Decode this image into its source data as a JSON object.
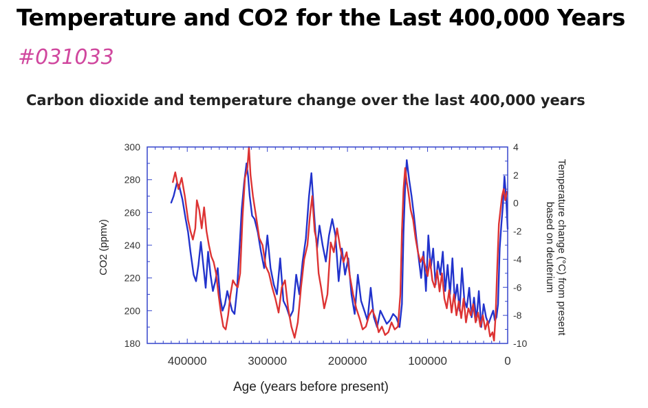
{
  "page": {
    "title": "Temperature and CO2 for the Last 400,000 Years",
    "code": "#031033"
  },
  "chart_data": {
    "type": "line",
    "title": "Carbon dioxide and temperature change over the last 400,000 years",
    "xlabel": "Age (years before present)",
    "ylabel": "CO2 (ppmv)",
    "y2label": [
      "Temperature change (°C) from present",
      "based on deuterium"
    ],
    "xlim": [
      450000,
      0
    ],
    "ylim": [
      180,
      300
    ],
    "y2lim": [
      -10,
      4
    ],
    "xticks": [
      400000,
      300000,
      200000,
      100000,
      0
    ],
    "yticks": [
      180,
      200,
      220,
      240,
      260,
      280,
      300
    ],
    "y2ticks": [
      -10,
      -8,
      -6,
      -4,
      -2,
      0,
      2,
      4
    ],
    "grid": false,
    "colors": {
      "co2": "#2233cc",
      "temperature": "#dd3333",
      "axes": "#3344cc"
    },
    "series": [
      {
        "key": "co2",
        "axis": "left",
        "x": [
          420000,
          417000,
          413000,
          410000,
          406000,
          402000,
          399000,
          396000,
          392000,
          389000,
          386000,
          383000,
          380000,
          377000,
          374000,
          371000,
          368000,
          365000,
          362000,
          359000,
          356000,
          353000,
          350000,
          347000,
          344000,
          341000,
          338000,
          335000,
          332000,
          329000,
          326000,
          324000,
          322000,
          319000,
          316000,
          312000,
          308000,
          304000,
          300000,
          296000,
          292000,
          288000,
          284000,
          280000,
          276000,
          272000,
          268000,
          264000,
          260000,
          256000,
          252000,
          248000,
          245000,
          242000,
          240000,
          238000,
          235000,
          231000,
          227000,
          223000,
          219000,
          215000,
          211000,
          207000,
          203000,
          199000,
          195000,
          191000,
          187000,
          183000,
          179000,
          175000,
          171000,
          167000,
          163000,
          159000,
          155000,
          151000,
          147000,
          143000,
          139000,
          135000,
          132000,
          130000,
          128000,
          126000,
          123000,
          120000,
          117000,
          114000,
          111000,
          108000,
          105000,
          102000,
          99000,
          96000,
          93000,
          90000,
          87000,
          84000,
          81000,
          78000,
          75000,
          72000,
          69000,
          66000,
          63000,
          60000,
          57000,
          54000,
          51000,
          48000,
          45000,
          42000,
          39000,
          36000,
          33000,
          30000,
          27000,
          24000,
          21000,
          18000,
          16000,
          14000,
          12000,
          10000,
          8000,
          6000,
          4000,
          2000,
          0
        ],
        "values": [
          266,
          270,
          278,
          276,
          268,
          256,
          248,
          236,
          222,
          218,
          228,
          242,
          228,
          214,
          236,
          222,
          212,
          218,
          226,
          208,
          200,
          204,
          212,
          206,
          200,
          198,
          212,
          236,
          262,
          278,
          290,
          282,
          270,
          258,
          256,
          248,
          236,
          226,
          246,
          226,
          216,
          210,
          232,
          206,
          202,
          196,
          200,
          222,
          210,
          230,
          244,
          270,
          284,
          262,
          248,
          238,
          252,
          240,
          230,
          246,
          256,
          246,
          218,
          238,
          222,
          232,
          210,
          198,
          222,
          206,
          200,
          194,
          214,
          196,
          190,
          200,
          196,
          192,
          194,
          198,
          196,
          190,
          204,
          248,
          276,
          292,
          280,
          270,
          258,
          244,
          232,
          220,
          236,
          212,
          246,
          226,
          238,
          216,
          230,
          222,
          236,
          212,
          228,
          210,
          232,
          206,
          216,
          200,
          226,
          206,
          202,
          214,
          196,
          208,
          194,
          212,
          190,
          204,
          196,
          192,
          196,
          200,
          194,
          196,
          204,
          238,
          252,
          264,
          282,
          270,
          250
        ]
      },
      {
        "key": "temperature",
        "axis": "right",
        "x": [
          418000,
          415000,
          411000,
          407000,
          403000,
          399000,
          396000,
          393000,
          390000,
          388000,
          385000,
          382000,
          379000,
          376000,
          373000,
          370000,
          367000,
          364000,
          361000,
          358000,
          355000,
          352000,
          349000,
          346000,
          343000,
          340000,
          337000,
          334000,
          331000,
          328000,
          325000,
          323000,
          321000,
          318000,
          314000,
          310000,
          306000,
          302000,
          298000,
          294000,
          290000,
          286000,
          282000,
          278000,
          274000,
          270000,
          266000,
          262000,
          258000,
          254000,
          250000,
          247000,
          244000,
          241000,
          239000,
          236000,
          233000,
          229000,
          225000,
          221000,
          217000,
          213000,
          209000,
          205000,
          201000,
          197000,
          193000,
          189000,
          185000,
          181000,
          177000,
          173000,
          169000,
          165000,
          161000,
          157000,
          153000,
          149000,
          145000,
          141000,
          137000,
          134000,
          132000,
          130000,
          128000,
          126000,
          124000,
          121000,
          118000,
          115000,
          112000,
          109000,
          106000,
          103000,
          100000,
          97000,
          94000,
          91000,
          88000,
          85000,
          82000,
          79000,
          76000,
          73000,
          70000,
          67000,
          64000,
          61000,
          58000,
          55000,
          52000,
          49000,
          46000,
          43000,
          40000,
          37000,
          34000,
          31000,
          28000,
          25000,
          22000,
          19000,
          17000,
          15000,
          13000,
          11000,
          9000,
          7000,
          5000,
          3000,
          1000
        ],
        "values": [
          1.5,
          2.2,
          1.0,
          1.8,
          0.5,
          -1.2,
          -2.0,
          -2.6,
          -1.8,
          0.2,
          -0.5,
          -1.8,
          -0.3,
          -2.0,
          -3.0,
          -3.8,
          -4.2,
          -5.0,
          -6.5,
          -7.8,
          -8.8,
          -9.0,
          -8.0,
          -6.5,
          -5.5,
          -5.8,
          -6.0,
          -5.0,
          -1.0,
          1.8,
          2.5,
          4.0,
          2.0,
          0.5,
          -1.0,
          -2.5,
          -3.0,
          -4.5,
          -5.0,
          -6.0,
          -6.8,
          -7.8,
          -6.0,
          -5.5,
          -7.5,
          -8.8,
          -9.6,
          -8.5,
          -6.0,
          -4.0,
          -3.0,
          -1.0,
          0.5,
          -2.0,
          -2.5,
          -5.0,
          -6.0,
          -7.5,
          -6.5,
          -2.8,
          -3.5,
          -1.8,
          -3.2,
          -4.2,
          -3.5,
          -5.2,
          -6.5,
          -7.5,
          -8.2,
          -9.0,
          -8.8,
          -8.0,
          -7.6,
          -8.2,
          -9.2,
          -8.8,
          -9.4,
          -9.2,
          -8.5,
          -9.0,
          -8.8,
          -6.5,
          -2.0,
          1.0,
          2.5,
          1.5,
          0.8,
          -0.5,
          -1.2,
          -2.5,
          -3.5,
          -4.2,
          -3.8,
          -4.5,
          -5.2,
          -4.0,
          -5.5,
          -6.0,
          -4.8,
          -6.3,
          -5.0,
          -6.8,
          -7.5,
          -6.2,
          -7.8,
          -6.5,
          -8.0,
          -7.0,
          -8.2,
          -6.8,
          -8.5,
          -7.5,
          -8.0,
          -7.2,
          -8.5,
          -7.8,
          -8.8,
          -8.0,
          -9.0,
          -8.4,
          -9.5,
          -9.2,
          -9.8,
          -8.0,
          -4.5,
          -1.5,
          -0.5,
          0.5,
          1.0,
          0.2,
          0.8
        ]
      }
    ]
  }
}
